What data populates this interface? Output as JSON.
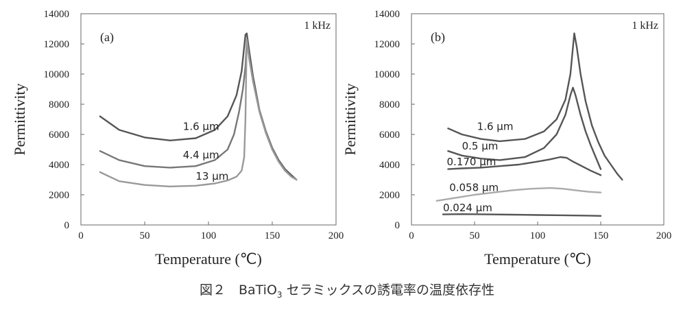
{
  "caption": {
    "prefix": "図２　BaTiO",
    "subscript": "3",
    "suffix": " セラミックスの誘電率の温度依存性"
  },
  "chart_data": [
    {
      "type": "line",
      "panel": "(a)",
      "frequency": "1 kHz",
      "xlabel": "Temperature (℃)",
      "ylabel": "Permittivity",
      "xlim": [
        0,
        200
      ],
      "ylim": [
        0,
        14000
      ],
      "xticks": [
        0,
        50,
        100,
        150,
        200
      ],
      "yticks": [
        0,
        2000,
        4000,
        6000,
        8000,
        10000,
        12000,
        14000
      ],
      "series": [
        {
          "name": "1.6 μm",
          "color": "#555555",
          "label_at": [
            80,
            6300
          ],
          "points": [
            [
              15,
              7200
            ],
            [
              30,
              6300
            ],
            [
              50,
              5800
            ],
            [
              70,
              5600
            ],
            [
              90,
              5750
            ],
            [
              105,
              6300
            ],
            [
              115,
              7200
            ],
            [
              122,
              8600
            ],
            [
              126,
              10200
            ],
            [
              129,
              12600
            ],
            [
              130,
              12700
            ],
            [
              132,
              11500
            ],
            [
              135,
              9800
            ],
            [
              140,
              7600
            ],
            [
              145,
              6200
            ],
            [
              150,
              5100
            ],
            [
              155,
              4300
            ],
            [
              160,
              3700
            ],
            [
              165,
              3300
            ],
            [
              169,
              3000
            ]
          ]
        },
        {
          "name": "4.4 μm",
          "color": "#777777",
          "label_at": [
            80,
            4400
          ],
          "points": [
            [
              15,
              4900
            ],
            [
              30,
              4300
            ],
            [
              50,
              3900
            ],
            [
              70,
              3800
            ],
            [
              90,
              3900
            ],
            [
              105,
              4300
            ],
            [
              115,
              5000
            ],
            [
              120,
              6000
            ],
            [
              124,
              7500
            ],
            [
              127,
              9000
            ],
            [
              129,
              10500
            ],
            [
              130,
              12200
            ],
            [
              132,
              11000
            ],
            [
              135,
              9500
            ],
            [
              140,
              7500
            ],
            [
              145,
              6100
            ],
            [
              150,
              5000
            ],
            [
              155,
              4200
            ],
            [
              160,
              3600
            ],
            [
              165,
              3200
            ],
            [
              169,
              3000
            ]
          ]
        },
        {
          "name": "13 μm",
          "color": "#999999",
          "label_at": [
            90,
            3000
          ],
          "points": [
            [
              15,
              3500
            ],
            [
              30,
              2900
            ],
            [
              50,
              2650
            ],
            [
              70,
              2550
            ],
            [
              90,
              2600
            ],
            [
              105,
              2750
            ],
            [
              115,
              2950
            ],
            [
              122,
              3200
            ],
            [
              126,
              3600
            ],
            [
              128,
              4500
            ],
            [
              129,
              7000
            ],
            [
              130,
              12300
            ],
            [
              132,
              11000
            ],
            [
              135,
              9500
            ],
            [
              140,
              7500
            ],
            [
              145,
              6100
            ],
            [
              150,
              5000
            ],
            [
              155,
              4200
            ],
            [
              160,
              3600
            ],
            [
              165,
              3200
            ],
            [
              169,
              3000
            ]
          ]
        }
      ]
    },
    {
      "type": "line",
      "panel": "(b)",
      "frequency": "1 kHz",
      "xlabel": "Temperature (℃)",
      "ylabel": "Permittivity",
      "xlim": [
        0,
        200
      ],
      "ylim": [
        0,
        14000
      ],
      "xticks": [
        0,
        50,
        100,
        150,
        200
      ],
      "yticks": [
        0,
        2000,
        4000,
        6000,
        8000,
        10000,
        12000,
        14000
      ],
      "series": [
        {
          "name": "1.6 μm",
          "color": "#555555",
          "label_at": [
            52,
            6300
          ],
          "points": [
            [
              29,
              6400
            ],
            [
              40,
              6000
            ],
            [
              55,
              5700
            ],
            [
              70,
              5550
            ],
            [
              90,
              5700
            ],
            [
              105,
              6200
            ],
            [
              115,
              7000
            ],
            [
              122,
              8300
            ],
            [
              126,
              10000
            ],
            [
              129,
              12700
            ],
            [
              131,
              11800
            ],
            [
              134,
              10000
            ],
            [
              138,
              8200
            ],
            [
              143,
              6600
            ],
            [
              148,
              5500
            ],
            [
              153,
              4600
            ],
            [
              158,
              4000
            ],
            [
              163,
              3400
            ],
            [
              167,
              3000
            ]
          ]
        },
        {
          "name": "0.5 μm",
          "color": "#555555",
          "label_at": [
            40,
            5000
          ],
          "points": [
            [
              29,
              4900
            ],
            [
              40,
              4600
            ],
            [
              55,
              4400
            ],
            [
              70,
              4300
            ],
            [
              90,
              4500
            ],
            [
              105,
              5100
            ],
            [
              115,
              6000
            ],
            [
              122,
              7300
            ],
            [
              126,
              8600
            ],
            [
              128,
              9100
            ],
            [
              130,
              8600
            ],
            [
              134,
              7300
            ],
            [
              138,
              6200
            ],
            [
              142,
              5300
            ],
            [
              146,
              4500
            ],
            [
              150,
              3700
            ]
          ]
        },
        {
          "name": "0.170 μm",
          "color": "#555555",
          "label_at": [
            28,
            3950
          ],
          "points": [
            [
              29,
              3700
            ],
            [
              40,
              3750
            ],
            [
              55,
              3800
            ],
            [
              70,
              3900
            ],
            [
              85,
              4000
            ],
            [
              100,
              4200
            ],
            [
              110,
              4350
            ],
            [
              118,
              4500
            ],
            [
              123,
              4450
            ],
            [
              128,
              4200
            ],
            [
              135,
              3900
            ],
            [
              142,
              3600
            ],
            [
              150,
              3300
            ]
          ]
        },
        {
          "name": "0.058 μm",
          "color": "#aaaaaa",
          "label_at": [
            30,
            2250
          ],
          "points": [
            [
              20,
              1600
            ],
            [
              35,
              1800
            ],
            [
              50,
              2000
            ],
            [
              65,
              2150
            ],
            [
              80,
              2300
            ],
            [
              95,
              2400
            ],
            [
              110,
              2450
            ],
            [
              120,
              2400
            ],
            [
              130,
              2300
            ],
            [
              140,
              2200
            ],
            [
              150,
              2150
            ]
          ]
        },
        {
          "name": "0.024 μm",
          "color": "#555555",
          "label_at": [
            25,
            900
          ],
          "points": [
            [
              25,
              700
            ],
            [
              40,
              720
            ],
            [
              60,
              700
            ],
            [
              80,
              680
            ],
            [
              100,
              660
            ],
            [
              120,
              640
            ],
            [
              140,
              620
            ],
            [
              150,
              600
            ]
          ]
        }
      ]
    }
  ]
}
